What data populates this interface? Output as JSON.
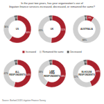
{
  "title": [
    "In the past two years, has your organization's use of",
    "litigation finance services increased, decreased, or remained the same?"
  ],
  "source": "Source: Burford 2018 Litigation Finance Survey",
  "chart_data": [
    {
      "type": "pie",
      "title": "US",
      "categories": [
        "Increased",
        "Remained the same",
        "Decreased"
      ],
      "values": [
        60,
        36,
        4
      ],
      "value_labels": [
        "60%",
        "36%",
        "4%"
      ],
      "colors": [
        "#a8222d",
        "#cfcfcf",
        "#5a5a5a"
      ],
      "data_labels": true
    },
    {
      "type": "pie",
      "title": "UK",
      "categories": [
        "Increased",
        "Remained the same",
        "Decreased"
      ],
      "values": [
        51,
        45,
        4
      ],
      "value_labels": [
        "51%",
        "45%",
        "4%"
      ],
      "colors": [
        "#a8222d",
        "#cfcfcf",
        "#5a5a5a"
      ],
      "data_labels": true
    },
    {
      "type": "pie",
      "title": "AUSTRALIA",
      "categories": [
        "Increased",
        "Remained the same",
        "Decreased"
      ],
      "values": [
        9,
        88,
        3
      ],
      "value_labels": [
        "9%",
        "88%",
        "3%"
      ],
      "colors": [
        "#a8222d",
        "#cfcfcf",
        "#5a5a5a"
      ],
      "data_labels": true
    },
    {
      "type": "pie",
      "title": "ALL RESPONDENTS",
      "categories": [
        "Increased",
        "Remained the same",
        "Decreased"
      ],
      "values": [
        54,
        42,
        4
      ],
      "value_labels": [
        "54%",
        "42%",
        "4%"
      ],
      "colors": [
        "#a8222d",
        "#cfcfcf",
        "#5a5a5a"
      ],
      "data_labels": true
    },
    {
      "type": "pie",
      "title": "LAW FIRM RESPONDENTS",
      "categories": [
        "Increased",
        "Remained the same",
        "Decreased"
      ],
      "values": [
        58,
        38,
        4
      ],
      "value_labels": [
        "58%",
        "38%",
        "4%"
      ],
      "colors": [
        "#a8222d",
        "#cfcfcf",
        "#5a5a5a"
      ],
      "data_labels": true
    },
    {
      "type": "pie",
      "title": "IN-HOUSE RESPONDENTS",
      "categories": [
        "Increased",
        "Remained the same",
        "Decreased"
      ],
      "values": [
        44,
        52,
        4
      ],
      "value_labels": [
        "44%",
        "52%",
        "4%"
      ],
      "colors": [
        "#a8222d",
        "#cfcfcf",
        "#5a5a5a"
      ],
      "data_labels": true
    }
  ]
}
